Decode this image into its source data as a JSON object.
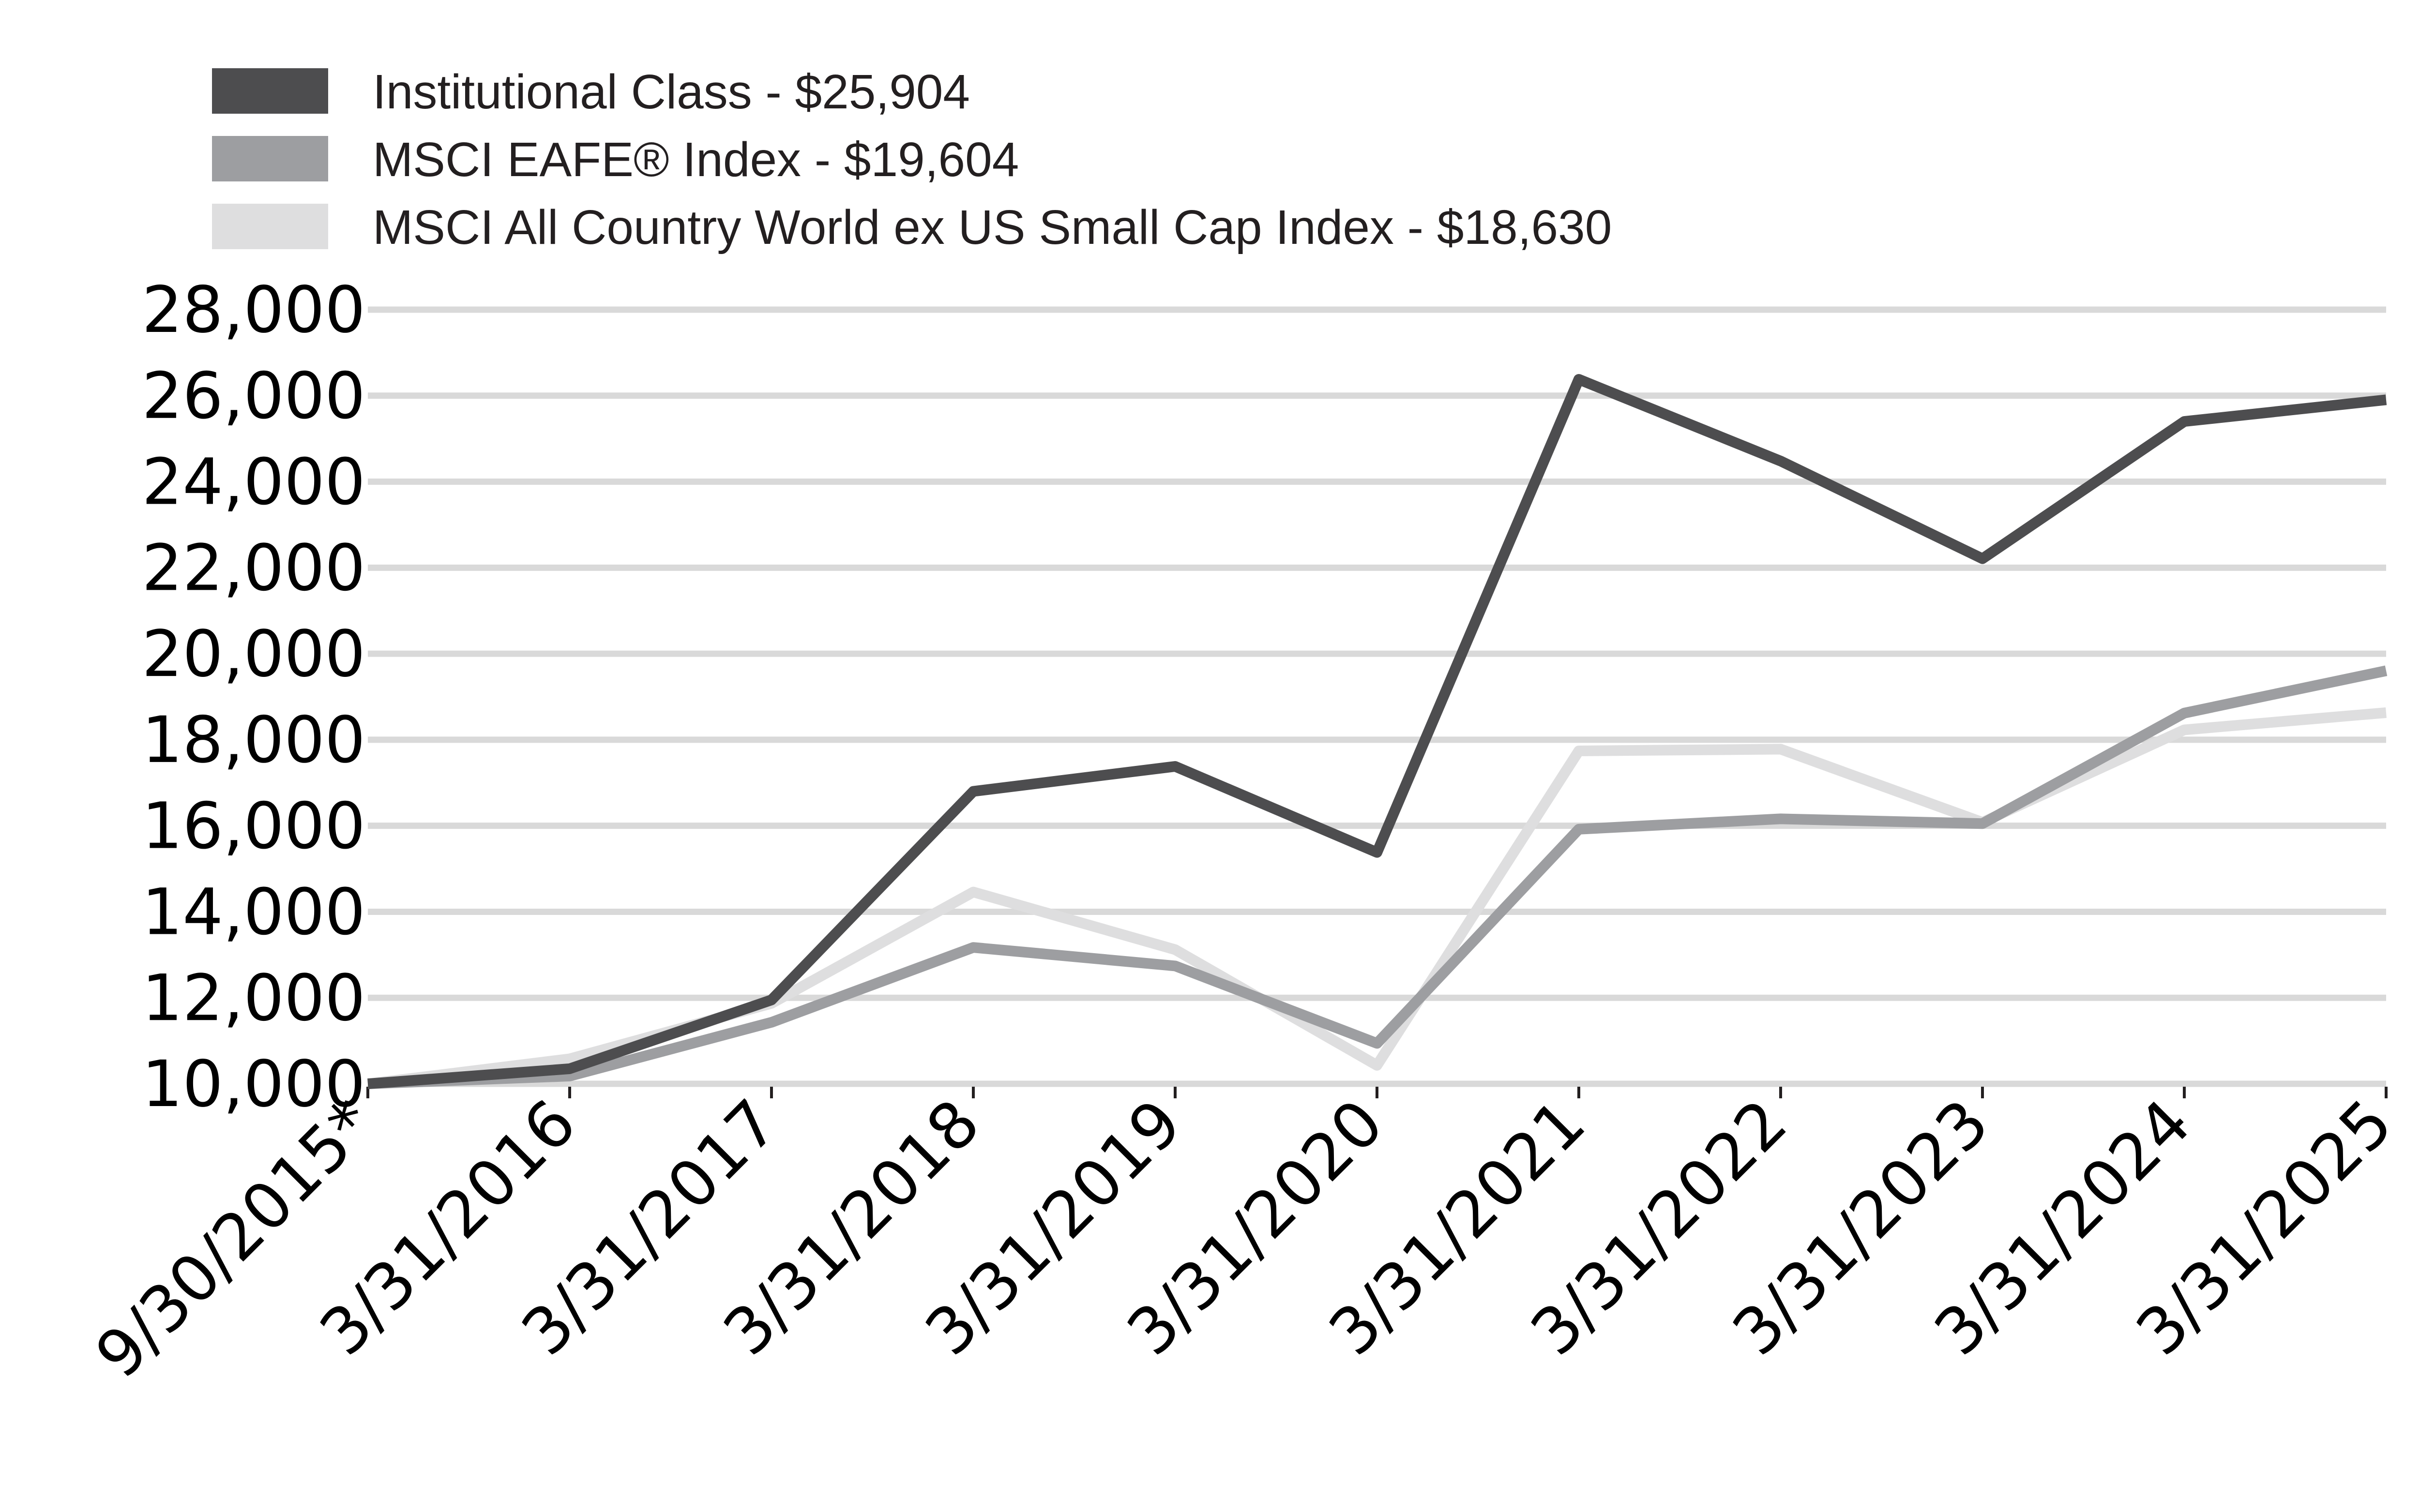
{
  "chart_data": {
    "type": "line",
    "title": "",
    "xlabel": "",
    "ylabel": "",
    "categories": [
      "9/30/2015*",
      "3/31/2016",
      "3/31/2017",
      "3/31/2018",
      "3/31/2019",
      "3/31/2020",
      "3/31/2021",
      "3/31/2022",
      "3/31/2023",
      "3/31/2024",
      "3/31/2025"
    ],
    "ylim": [
      10000,
      28000
    ],
    "yticks": [
      10000,
      12000,
      14000,
      16000,
      18000,
      20000,
      22000,
      24000,
      26000,
      28000
    ],
    "ytick_labels": [
      "10,000",
      "12,000",
      "14,000",
      "16,000",
      "18,000",
      "20,000",
      "22,000",
      "24,000",
      "26,000",
      "28,000"
    ],
    "grid": true,
    "legend_position": "top-left",
    "series": [
      {
        "name": "Institutional Class - $25,904",
        "color": "#4d4d4f",
        "values": [
          10000,
          10350,
          11950,
          16800,
          17380,
          15380,
          26380,
          24480,
          22210,
          25400,
          25904
        ]
      },
      {
        "name": "MSCI EAFE® Index - $19,604",
        "color": "#9d9ea1",
        "values": [
          10000,
          10180,
          11430,
          13170,
          12740,
          10940,
          15920,
          16160,
          16050,
          18620,
          19604
        ]
      },
      {
        "name": "MSCI All Country World ex US Small Cap Index - $18,630",
        "color": "#dededf",
        "values": [
          10000,
          10580,
          11870,
          14460,
          13120,
          10430,
          17740,
          17780,
          16080,
          18230,
          18630
        ]
      }
    ]
  }
}
